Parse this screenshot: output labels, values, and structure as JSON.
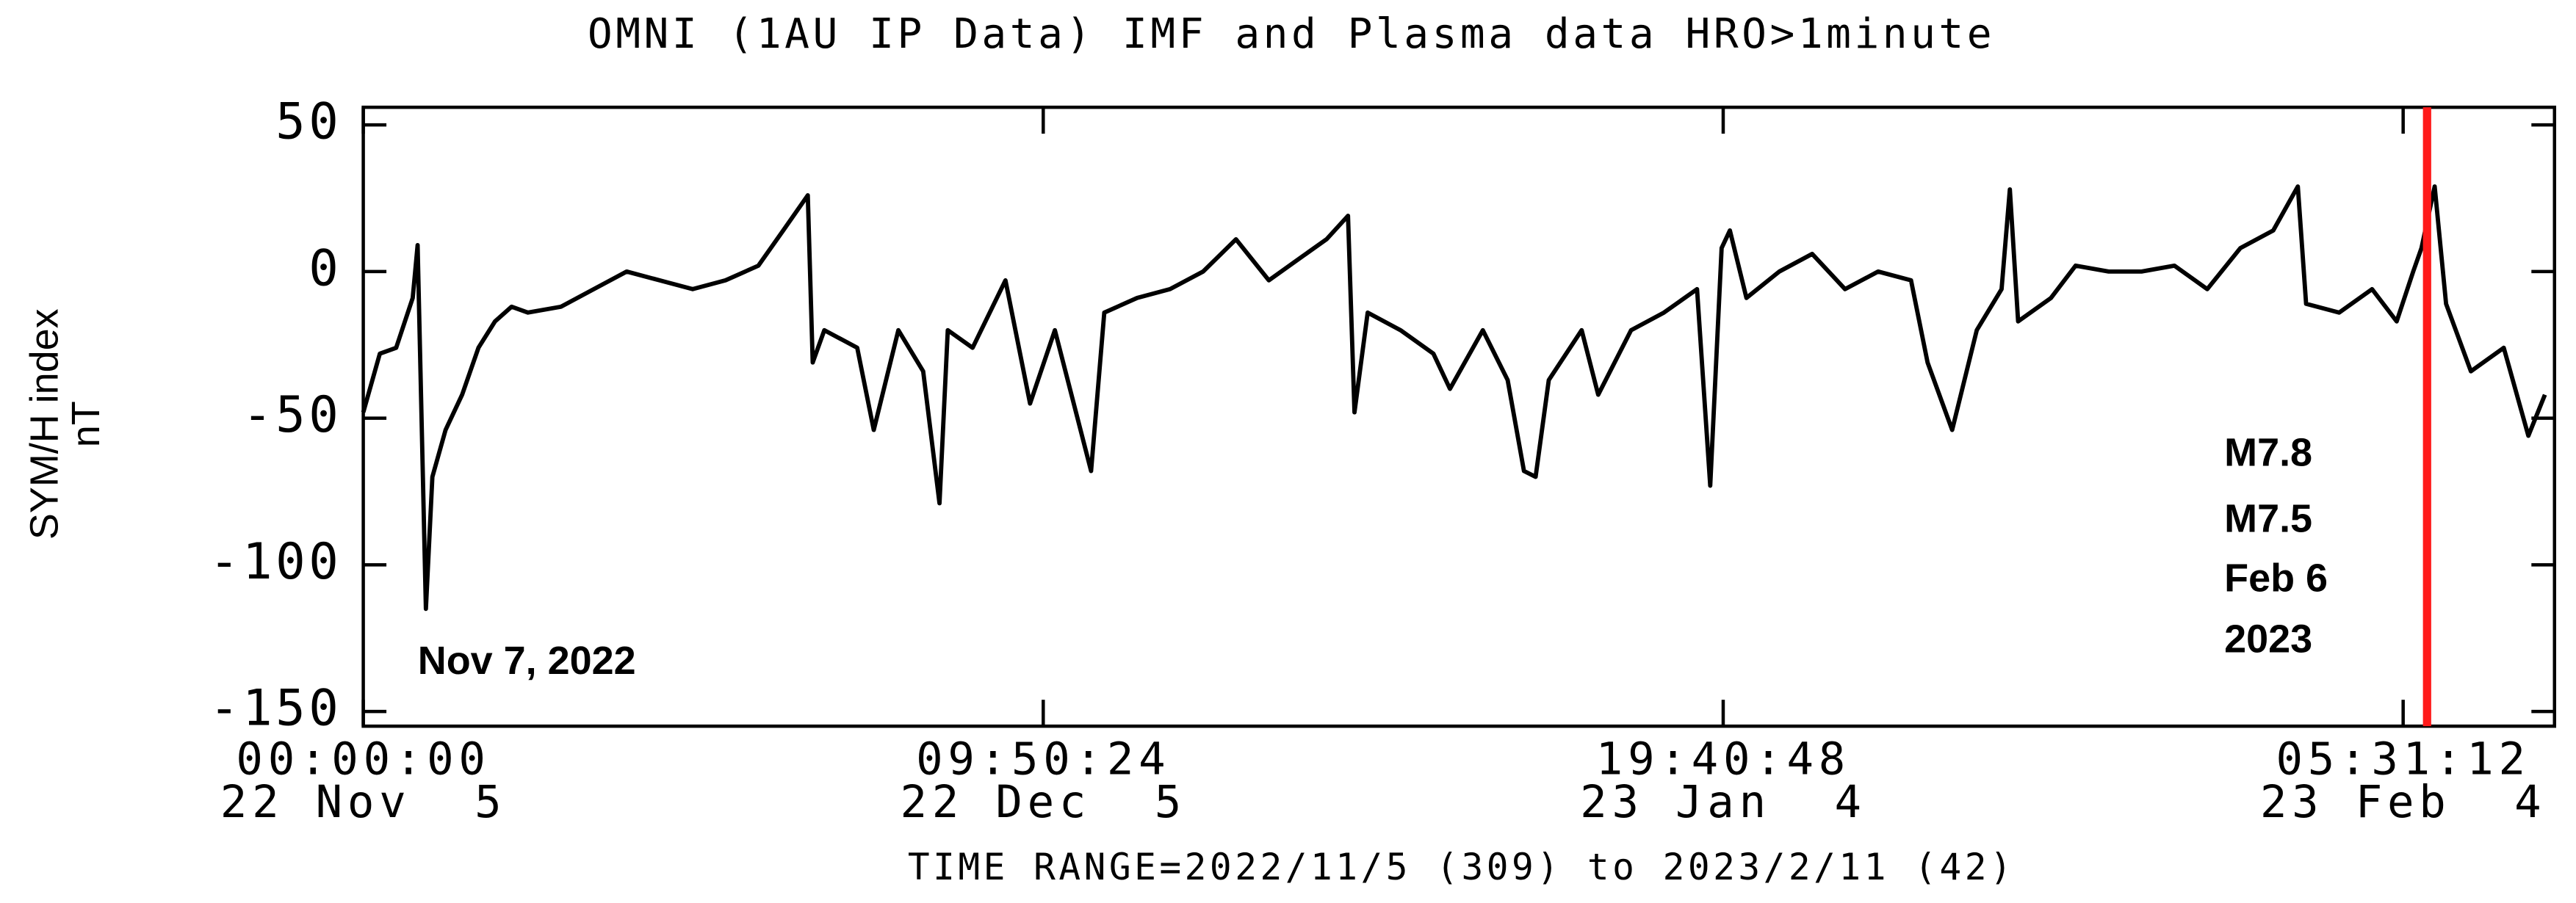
{
  "chart_data": {
    "type": "line",
    "title": "OMNI (1AU IP Data)  IMF and Plasma data  HRO>1minute",
    "ylabel": "SYM/H index",
    "yunit": "nT",
    "xlabel": "TIME RANGE=2022/11/5 (309) to 2023/2/11 (42)",
    "xlim": [
      0,
      98
    ],
    "ylim": [
      -155,
      56
    ],
    "xticks": [
      {
        "value": 0,
        "label": "00:00:00\n22 Nov  5"
      },
      {
        "value": 30.41,
        "label": "09:50:24\n22 Dec  5"
      },
      {
        "value": 60.82,
        "label": "19:40:48\n23 Jan  4"
      },
      {
        "value": 91.23,
        "label": "05:31:12\n23 Feb  4"
      }
    ],
    "yticks": [
      50,
      0,
      -50,
      -100,
      -150
    ],
    "series": [
      {
        "name": "SYM/H",
        "color": "#000000",
        "x": [
          0,
          0.74,
          1.47,
          2.21,
          2.43,
          2.8,
          3.09,
          3.68,
          4.42,
          5.15,
          5.89,
          6.63,
          7.36,
          8.84,
          10.31,
          11.78,
          13.25,
          14.73,
          16.2,
          17.67,
          18.78,
          19.88,
          20.1,
          20.62,
          22.09,
          22.83,
          23.93,
          25.04,
          25.77,
          26.14,
          27.25,
          28.72,
          29.82,
          30.93,
          32.55,
          33.14,
          34.61,
          36.08,
          37.56,
          39.03,
          40.5,
          41.97,
          43.08,
          44.04,
          44.33,
          44.92,
          46.39,
          47.86,
          48.6,
          50.07,
          51.18,
          51.91,
          52.43,
          53.02,
          54.49,
          55.23,
          56.7,
          58.17,
          59.65,
          60.24,
          60.75,
          61.12,
          61.86,
          63.33,
          64.8,
          66.27,
          67.75,
          69.22,
          69.96,
          71.06,
          72.16,
          73.27,
          73.64,
          74.01,
          75.48,
          76.58,
          78.06,
          79.53,
          81.0,
          82.47,
          83.95,
          85.42,
          86.52,
          86.89,
          88.37,
          89.84,
          90.94,
          91.68,
          92.05,
          92.64,
          93.15,
          94.26,
          95.73,
          96.83,
          97.57
        ],
        "values": [
          -48,
          -28,
          -26,
          -9,
          9,
          -115,
          -70,
          -54,
          -42,
          -26,
          -17,
          -12,
          -14,
          -12,
          -6,
          0,
          -3,
          -6,
          -3,
          2,
          14,
          26,
          -31,
          -20,
          -26,
          -54,
          -20,
          -34,
          -79,
          -20,
          -26,
          -3,
          -45,
          -20,
          -68,
          -14,
          -9,
          -6,
          0,
          11,
          -3,
          5,
          11,
          19,
          -48,
          -14,
          -20,
          -28,
          -40,
          -20,
          -37,
          -68,
          -70,
          -37,
          -20,
          -42,
          -20,
          -14,
          -6,
          -73,
          8,
          14,
          -9,
          0,
          6,
          -6,
          0,
          -3,
          -31,
          -54,
          -20,
          -6,
          28,
          -17,
          -9,
          2,
          0,
          0,
          2,
          -6,
          8,
          14,
          29,
          -11,
          -14,
          -6,
          -17,
          0,
          8,
          29,
          -11,
          -34,
          -26,
          -56,
          -42
        ]
      }
    ],
    "marker": {
      "x": 92.3,
      "color": "#ff1a1a"
    },
    "annotations": [
      {
        "text": "Nov 7, 2022"
      },
      {
        "text": "M7.8"
      },
      {
        "text": "M7.5"
      },
      {
        "text": "Feb 6"
      },
      {
        "text": "2023"
      }
    ]
  }
}
